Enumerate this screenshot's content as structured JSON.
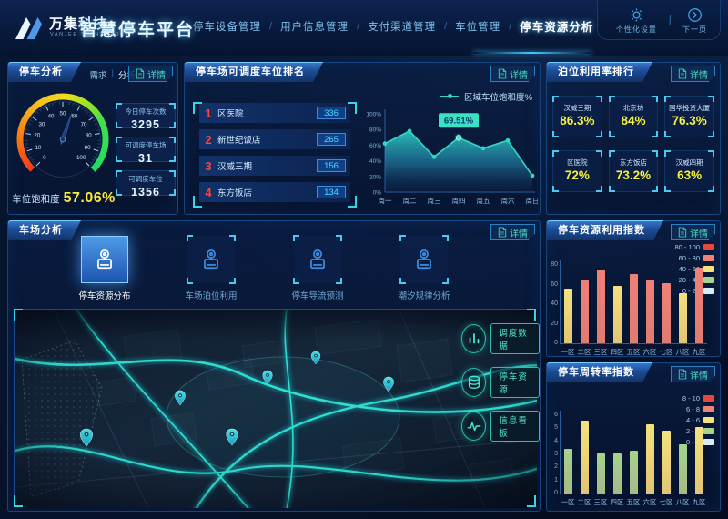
{
  "colors": {
    "accent_cyan": "#35d6c8",
    "accent_blue": "#3f8de0",
    "value_yellow": "#ffe93d",
    "rank_red": "#ff4438",
    "bar_red": "#e8483a",
    "bar_salmon": "#ef8177",
    "bar_yellow": "#f3e27d",
    "bar_green": "#a5d48e",
    "bar_pale": "#d9ecf4"
  },
  "header": {
    "logo_text": "万集科技",
    "logo_sub": "VANJEE TECHNOLOGY",
    "app_title": "智慧停车平台",
    "nav_separator": "/",
    "nav_items": [
      {
        "label": "停车设备管理",
        "active": false
      },
      {
        "label": "用户信息管理",
        "active": false
      },
      {
        "label": "支付渠道管理",
        "active": false
      },
      {
        "label": "车位管理",
        "active": false
      },
      {
        "label": "停车资源分析",
        "active": true
      }
    ],
    "actions": [
      {
        "label": "个性化设置",
        "icon": "gear-icon"
      },
      {
        "label": "下一页",
        "icon": "next-page-icon"
      }
    ],
    "action_divider": "\\"
  },
  "panels": {
    "parking_analysis": {
      "title": "停车分析",
      "tab_separator": "|",
      "sub_tabs": [
        {
          "label": "需求",
          "active": false
        },
        {
          "label": "分析",
          "active": true
        }
      ],
      "detail_label": "详情",
      "stats": [
        {
          "label": "今日停车次数",
          "value": "3295"
        },
        {
          "label": "可调度停车场",
          "value": "31"
        },
        {
          "label": "可调度车位",
          "value": "1356"
        }
      ]
    },
    "dispatch_ranking": {
      "title": "停车场可调度车位排名",
      "detail_label": "详情",
      "items": [
        {
          "rank": "1",
          "name": "区医院",
          "value": "336"
        },
        {
          "rank": "2",
          "name": "新世纪饭店",
          "value": "265"
        },
        {
          "rank": "3",
          "name": "汉威三期",
          "value": "156"
        },
        {
          "rank": "4",
          "name": "东方饭店",
          "value": "134"
        }
      ]
    },
    "berth_ranking": {
      "title": "泊位利用率排行",
      "detail_label": "详情",
      "cards": [
        {
          "name": "汉威三期",
          "value": "86.3%"
        },
        {
          "name": "北京坊",
          "value": "84%"
        },
        {
          "name": "国华投资大厦",
          "value": "76.3%"
        },
        {
          "name": "区医院",
          "value": "72%"
        },
        {
          "name": "东方饭店",
          "value": "73.2%"
        },
        {
          "name": "汉威四期",
          "value": "63%"
        }
      ]
    },
    "lot_analysis": {
      "title": "车场分析",
      "detail_label": "详情",
      "tabs": [
        {
          "label": "停车资源分布",
          "active": true
        },
        {
          "label": "车场泊位利用",
          "active": false
        },
        {
          "label": "停车导流预测",
          "active": false
        },
        {
          "label": "潮汐规律分析",
          "active": false
        }
      ],
      "map_buttons": [
        {
          "label": "调度数据",
          "icon": "dispatch-data-icon"
        },
        {
          "label": "停车资源",
          "icon": "parking-resource-icon"
        },
        {
          "label": "信息看板",
          "icon": "info-board-icon"
        }
      ]
    },
    "resource_index": {
      "title": "停车资源利用指数",
      "detail_label": "详情"
    },
    "turnover_index": {
      "title": "停车周转率指数",
      "detail_label": "详情"
    }
  },
  "chart_data": [
    {
      "id": "region_saturation",
      "type": "area",
      "title": "区域车位饱和度%",
      "legend": [
        "区域车位饱和度%"
      ],
      "x": [
        "周一",
        "周二",
        "周三",
        "周四",
        "周五",
        "周六",
        "周日"
      ],
      "values": [
        62,
        78,
        45,
        69.51,
        56,
        66,
        21
      ],
      "highlight": {
        "index": 3,
        "label": "69.51%"
      },
      "ylim": [
        0,
        100
      ],
      "yticks": [
        "0%",
        "20%",
        "40%",
        "60%",
        "80%",
        "100%"
      ],
      "line_color": "#35d6c8",
      "legend_position": "top-right",
      "grid": false
    },
    {
      "id": "resource_index_bars",
      "type": "bar",
      "title": "停车资源利用指数",
      "categories": [
        "一区",
        "二区",
        "三区",
        "四区",
        "五区",
        "六区",
        "七区",
        "八区",
        "九区"
      ],
      "values": [
        56,
        65,
        75,
        59,
        71,
        65,
        61,
        51,
        77
      ],
      "ylim": [
        0,
        80
      ],
      "yticks": [
        0,
        20,
        40,
        60,
        80
      ],
      "band_size": 20,
      "legend_position": "top-right",
      "legend": [
        {
          "label": "80 - 100",
          "color": "#e8483a"
        },
        {
          "label": "60 - 80",
          "color": "#ef8177"
        },
        {
          "label": "40 - 60",
          "color": "#f3e27d"
        },
        {
          "label": "20 - 40",
          "color": "#a5d48e"
        },
        {
          "label": "0 - 20",
          "color": "#d9ecf4"
        }
      ]
    },
    {
      "id": "turnover_index_bars",
      "type": "bar",
      "title": "停车周转率指数",
      "categories": [
        "一区",
        "二区",
        "三区",
        "四区",
        "五区",
        "六区",
        "七区",
        "八区",
        "九区"
      ],
      "values": [
        3.4,
        5.6,
        3.1,
        3.1,
        3.3,
        5.3,
        4.8,
        3.8,
        5.1
      ],
      "ylim": [
        0,
        6
      ],
      "yticks": [
        0,
        1,
        2,
        3,
        4,
        5,
        6
      ],
      "band_size": 2,
      "legend_position": "top-right",
      "legend": [
        {
          "label": "8 - 10",
          "color": "#e8483a"
        },
        {
          "label": "6 - 8",
          "color": "#ef8177"
        },
        {
          "label": "4 - 6",
          "color": "#f3e27d"
        },
        {
          "label": "2 - 4",
          "color": "#a5d48e"
        },
        {
          "label": "0 - 2",
          "color": "#d9ecf4"
        }
      ]
    },
    {
      "id": "saturation_gauge",
      "type": "gauge",
      "label": "车位饱和度",
      "value": 57.06,
      "display": "57.06%",
      "min": 0,
      "max": 100
    }
  ]
}
